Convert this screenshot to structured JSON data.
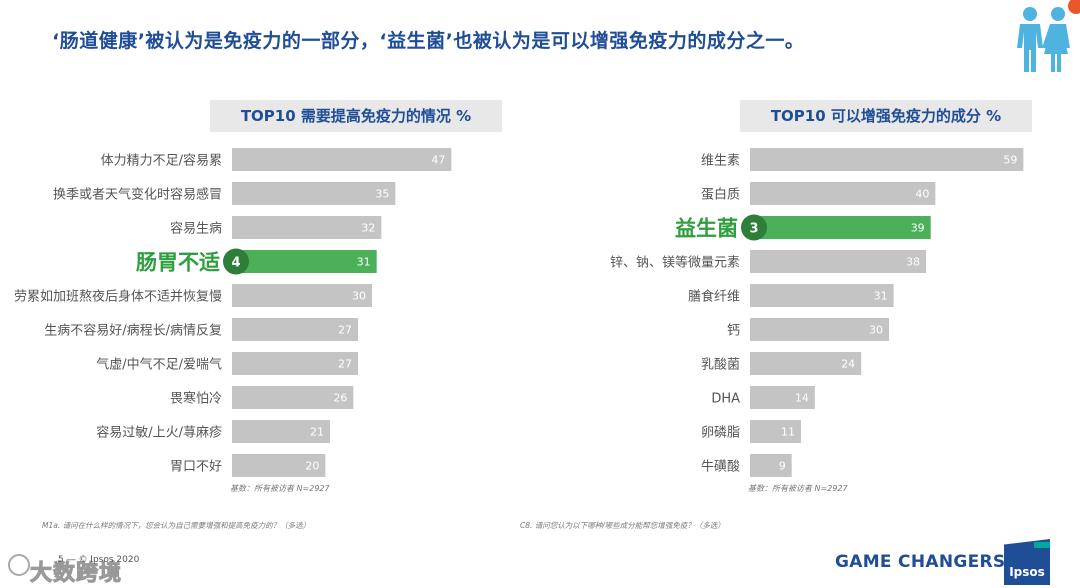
{
  "headline": "‘肠道健康’被认为是免疫力的一部分，‘益生菌’也被认为是可以增强免疫力的成分之一。",
  "chart_data": [
    {
      "type": "bar",
      "orientation": "horizontal",
      "title": "TOP10 需要提高免疫力的情况 %",
      "categories": [
        "体力精力不足/容易累",
        "换季或者天气变化时容易感冒",
        "容易生病",
        "肠胃不适",
        "劳累如加班熬夜后身体不适并恢复慢",
        "生病不容易好/病程长/病情反复",
        "气虚/中气不足/爱喘气",
        "畏寒怕冷",
        "容易过敏/上火/荨麻疹",
        "胃口不好"
      ],
      "values": [
        47,
        35,
        32,
        31,
        30,
        27,
        27,
        26,
        21,
        20
      ],
      "highlight": {
        "index": 3,
        "label": "肠胃不适",
        "rank": "4"
      },
      "base_note": "基数：所有被访者 N=2927",
      "xlim": [
        0,
        60
      ]
    },
    {
      "type": "bar",
      "orientation": "horizontal",
      "title": "TOP10 可以增强免疫力的成分 %",
      "categories": [
        "维生素",
        "蛋白质",
        "益生菌",
        "锌、钠、镁等微量元素",
        "膳食纤维",
        "钙",
        "乳酸菌",
        "DHA",
        "卵磷脂",
        "牛磺酸"
      ],
      "values": [
        59,
        40,
        39,
        38,
        31,
        30,
        24,
        14,
        11,
        9
      ],
      "highlight": {
        "index": 2,
        "label": "益生菌",
        "rank": "3"
      },
      "base_note": "基数：所有被访者 N=2927",
      "xlim": [
        0,
        60
      ]
    }
  ],
  "footnotes": {
    "left": "M1a. 请问在什么样的情况下，您会认为自己需要增强和提高免疫力的？（多选）",
    "right": "C8. 请问您认为以下哪种/哪些成分能帮您增强免疫？（多选）"
  },
  "footer": {
    "copyright": "5 ― © Ipsos 2020",
    "watermark": "大数跨境",
    "tagline": "GAME CHANGERS",
    "logo_text": "Ipsos"
  },
  "colors": {
    "bar": "#c4c4c4",
    "highlight": "#4cb05a",
    "highlight_text": "#2e9e3e",
    "badge": "#2f7d3a",
    "title_blue": "#1f4e96"
  }
}
